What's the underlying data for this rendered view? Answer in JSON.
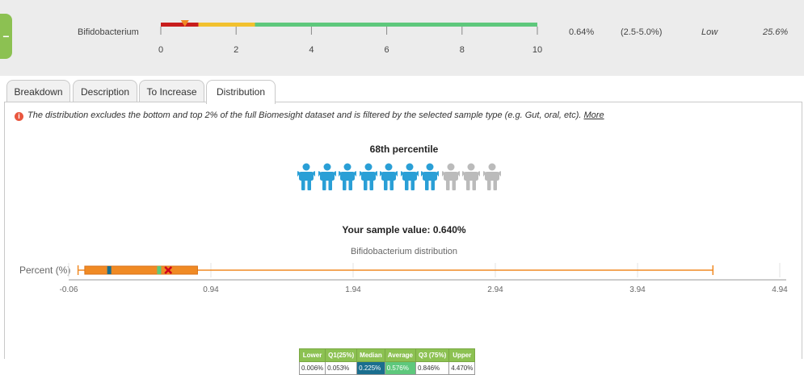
{
  "row": {
    "name": "Bifidobacterium",
    "value": "0.64%",
    "range": "(2.5-5.0%)",
    "status": "Low",
    "percent": "25.6%",
    "scale_ticks": [
      "0",
      "2",
      "4",
      "6",
      "8",
      "10"
    ],
    "scale": {
      "min": 0,
      "max": 10,
      "marker": 0.64,
      "segments": [
        {
          "from": 0,
          "to": 1,
          "color": "#c81d1d"
        },
        {
          "from": 1,
          "to": 2.5,
          "color": "#f2c12e"
        },
        {
          "from": 2.5,
          "to": 10,
          "color": "#5ec87c"
        }
      ]
    },
    "toggle_label": "−"
  },
  "tabs": [
    {
      "label": "Breakdown"
    },
    {
      "label": "Description"
    },
    {
      "label": "To Increase"
    },
    {
      "label": "Distribution",
      "active": true
    }
  ],
  "info": {
    "icon": "info-icon",
    "text": "The distribution excludes the bottom and top 2% of the full Biomesight dataset and is filtered by the selected sample type (e.g. Gut, oral, etc).",
    "link": "More"
  },
  "percentile": {
    "title": "68th percentile",
    "filled": 7,
    "total": 10,
    "filled_color": "#2a9fd6",
    "empty_color": "#bbbbbb"
  },
  "sample_value": "Your sample value: 0.640%",
  "chart_data": {
    "type": "boxplot",
    "title": "Bifidobacterium distribution",
    "ylabel": "Percent (%)",
    "x_ticks": [
      "-0.06",
      "0.94",
      "1.94",
      "2.94",
      "3.94",
      "4.94"
    ],
    "xlim": [
      -0.06,
      4.94
    ],
    "lower": 0.006,
    "q1": 0.053,
    "median": 0.225,
    "average": 0.576,
    "q3": 0.846,
    "upper": 4.47,
    "sample": 0.64,
    "colors": {
      "box": "#f08a24",
      "median": "#1a6e8e",
      "average": "#5ec87c",
      "sample": "#d0021b"
    }
  },
  "stats_table": {
    "headers": [
      "Lower",
      "Q1(25%)",
      "Median",
      "Average",
      "Q3 (75%)",
      "Upper"
    ],
    "values": [
      "0.006%",
      "0.053%",
      "0.225%",
      "0.576%",
      "0.846%",
      "4.470%"
    ]
  }
}
